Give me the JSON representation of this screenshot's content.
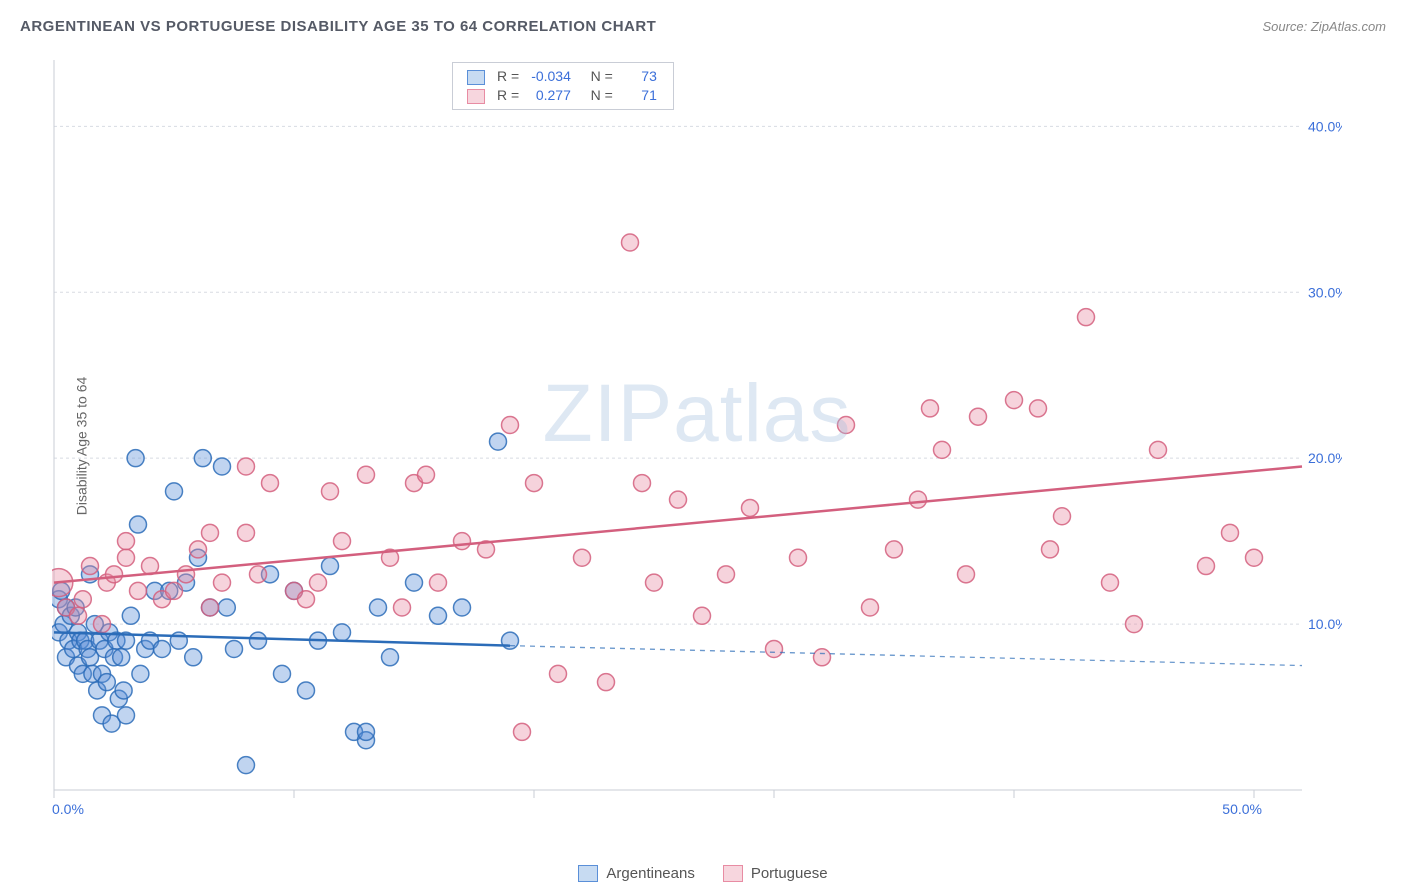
{
  "title": "ARGENTINEAN VS PORTUGUESE DISABILITY AGE 35 TO 64 CORRELATION CHART",
  "source": "Source: ZipAtlas.com",
  "ylabel": "Disability Age 35 to 64",
  "watermark": "ZIPatlas",
  "chart": {
    "type": "scatter",
    "background_color": "#ffffff",
    "grid_color": "#d8dbe2",
    "grid_dash": "3,3",
    "axis_color": "#c9cdd6",
    "xlim": [
      0,
      52
    ],
    "ylim": [
      0,
      44
    ],
    "y_ticks": [
      10,
      20,
      30,
      40
    ],
    "y_tick_labels": [
      "10.0%",
      "20.0%",
      "30.0%",
      "40.0%"
    ],
    "x_ticks": [
      0,
      10,
      20,
      30,
      40,
      50
    ],
    "x_tick_labels_shown": {
      "0": "0.0%",
      "50": "50.0%"
    },
    "label_fontsize": 14,
    "label_color": "#3b6fd9",
    "marker_radius": 8.5,
    "marker_radius_large": 14,
    "marker_stroke_width": 1.5,
    "marker_fill_opacity": 0.38,
    "trend_line_width": 2.5,
    "dashed_line_width": 1.3
  },
  "series": [
    {
      "name": "Argentineans",
      "color": "#5a8fd8",
      "fill": "#5a8fd8",
      "stroke": "#2b6cb8",
      "points": [
        [
          0.2,
          9.5
        ],
        [
          0.2,
          11.5
        ],
        [
          0.3,
          12.0
        ],
        [
          0.4,
          10.0
        ],
        [
          0.5,
          11.0
        ],
        [
          0.5,
          8.0
        ],
        [
          0.6,
          9.0
        ],
        [
          0.7,
          10.5
        ],
        [
          0.8,
          8.5
        ],
        [
          0.9,
          11.0
        ],
        [
          1.0,
          9.5
        ],
        [
          1.0,
          7.5
        ],
        [
          1.1,
          9.0
        ],
        [
          1.2,
          7.0
        ],
        [
          1.3,
          9.0
        ],
        [
          1.4,
          8.5
        ],
        [
          1.5,
          13.0
        ],
        [
          1.5,
          8.0
        ],
        [
          1.6,
          7.0
        ],
        [
          1.7,
          10.0
        ],
        [
          1.8,
          6.0
        ],
        [
          1.9,
          9.0
        ],
        [
          2.0,
          7.0
        ],
        [
          2.0,
          4.5
        ],
        [
          2.1,
          8.5
        ],
        [
          2.2,
          6.5
        ],
        [
          2.3,
          9.5
        ],
        [
          2.4,
          4.0
        ],
        [
          2.5,
          8.0
        ],
        [
          2.6,
          9.0
        ],
        [
          2.7,
          5.5
        ],
        [
          2.8,
          8.0
        ],
        [
          2.9,
          6.0
        ],
        [
          3.0,
          9.0
        ],
        [
          3.0,
          4.5
        ],
        [
          3.2,
          10.5
        ],
        [
          3.4,
          20.0
        ],
        [
          3.5,
          16.0
        ],
        [
          3.6,
          7.0
        ],
        [
          3.8,
          8.5
        ],
        [
          4.0,
          9.0
        ],
        [
          4.2,
          12.0
        ],
        [
          4.5,
          8.5
        ],
        [
          4.8,
          12.0
        ],
        [
          5.0,
          18.0
        ],
        [
          5.2,
          9.0
        ],
        [
          5.5,
          12.5
        ],
        [
          5.8,
          8.0
        ],
        [
          6.0,
          14.0
        ],
        [
          6.2,
          20.0
        ],
        [
          6.5,
          11.0
        ],
        [
          7.0,
          19.5
        ],
        [
          7.2,
          11.0
        ],
        [
          7.5,
          8.5
        ],
        [
          8.0,
          1.5
        ],
        [
          8.5,
          9.0
        ],
        [
          9.0,
          13.0
        ],
        [
          9.5,
          7.0
        ],
        [
          10.0,
          12.0
        ],
        [
          10.5,
          6.0
        ],
        [
          11.0,
          9.0
        ],
        [
          11.5,
          13.5
        ],
        [
          12.0,
          9.5
        ],
        [
          12.5,
          3.5
        ],
        [
          13.0,
          3.0
        ],
        [
          13.0,
          3.5
        ],
        [
          13.5,
          11.0
        ],
        [
          14.0,
          8.0
        ],
        [
          15.0,
          12.5
        ],
        [
          16.0,
          10.5
        ],
        [
          17.0,
          11.0
        ],
        [
          18.5,
          21.0
        ],
        [
          19.0,
          9.0
        ]
      ],
      "trend": {
        "x1": 0,
        "y1": 9.5,
        "x2": 19,
        "y2": 8.7
      },
      "trend_dashed": {
        "x1": 19,
        "y1": 8.7,
        "x2": 52,
        "y2": 7.5
      },
      "R": "-0.034",
      "N": "73"
    },
    {
      "name": "Portuguese",
      "color": "#e88ca3",
      "fill": "#e88ca3",
      "stroke": "#d35f7e",
      "points": [
        [
          0.2,
          12.5,
          14
        ],
        [
          0.5,
          11.0
        ],
        [
          1.0,
          10.5
        ],
        [
          1.2,
          11.5
        ],
        [
          1.5,
          13.5
        ],
        [
          2.0,
          10.0
        ],
        [
          2.2,
          12.5
        ],
        [
          2.5,
          13.0
        ],
        [
          3.0,
          14.0
        ],
        [
          3.5,
          12.0
        ],
        [
          4.0,
          13.5
        ],
        [
          4.5,
          11.5
        ],
        [
          5.0,
          12.0
        ],
        [
          5.5,
          13.0
        ],
        [
          6.0,
          14.5
        ],
        [
          6.5,
          11.0
        ],
        [
          7.0,
          12.5
        ],
        [
          8.0,
          15.5
        ],
        [
          8.5,
          13.0
        ],
        [
          9.0,
          18.5
        ],
        [
          10.0,
          12.0
        ],
        [
          10.5,
          11.5
        ],
        [
          11.0,
          12.5
        ],
        [
          11.5,
          18.0
        ],
        [
          12.0,
          15.0
        ],
        [
          13.0,
          19.0
        ],
        [
          14.0,
          14.0
        ],
        [
          14.5,
          11.0
        ],
        [
          15.0,
          18.5
        ],
        [
          15.5,
          19.0
        ],
        [
          16.0,
          12.5
        ],
        [
          17.0,
          15.0
        ],
        [
          18.0,
          14.5
        ],
        [
          19.0,
          22.0
        ],
        [
          19.5,
          3.5
        ],
        [
          20.0,
          18.5
        ],
        [
          21.0,
          7.0
        ],
        [
          22.0,
          14.0
        ],
        [
          23.0,
          6.5
        ],
        [
          24.0,
          33.0
        ],
        [
          24.5,
          18.5
        ],
        [
          25.0,
          12.5
        ],
        [
          26.0,
          17.5
        ],
        [
          27.0,
          10.5
        ],
        [
          28.0,
          13.0
        ],
        [
          29.0,
          17.0
        ],
        [
          30.0,
          8.5
        ],
        [
          31.0,
          14.0
        ],
        [
          32.0,
          8.0
        ],
        [
          33.0,
          22.0
        ],
        [
          34.0,
          11.0
        ],
        [
          35.0,
          14.5
        ],
        [
          36.0,
          17.5
        ],
        [
          37.0,
          20.5
        ],
        [
          38.0,
          13.0
        ],
        [
          40.0,
          23.5
        ],
        [
          41.0,
          23.0
        ],
        [
          41.5,
          14.5
        ],
        [
          42.0,
          16.5
        ],
        [
          43.0,
          28.5
        ],
        [
          44.0,
          12.5
        ],
        [
          45.0,
          10.0
        ],
        [
          46.0,
          20.5
        ],
        [
          48.0,
          13.5
        ],
        [
          49.0,
          15.5
        ],
        [
          50.0,
          14.0
        ],
        [
          36.5,
          23.0
        ],
        [
          38.5,
          22.5
        ],
        [
          3.0,
          15.0
        ],
        [
          8.0,
          19.5
        ],
        [
          6.5,
          15.5
        ]
      ],
      "trend": {
        "x1": 0,
        "y1": 12.5,
        "x2": 52,
        "y2": 19.5
      },
      "R": "0.277",
      "N": "71"
    }
  ],
  "legend": {
    "stat_rows": [
      {
        "swatch_fill": "#c7dbf2",
        "swatch_stroke": "#5a8fd8",
        "r_label": "R =",
        "n_label": "N =",
        "r_val": "-0.034",
        "n_val": "73"
      },
      {
        "swatch_fill": "#f7d6de",
        "swatch_stroke": "#e88ca3",
        "r_label": "R =",
        "n_label": "N =",
        "r_val": "0.277",
        "n_val": "71"
      }
    ],
    "bottom": [
      {
        "label": "Argentineans",
        "fill": "#c7dbf2",
        "stroke": "#5a8fd8"
      },
      {
        "label": "Portuguese",
        "fill": "#f7d6de",
        "stroke": "#e88ca3"
      }
    ]
  }
}
